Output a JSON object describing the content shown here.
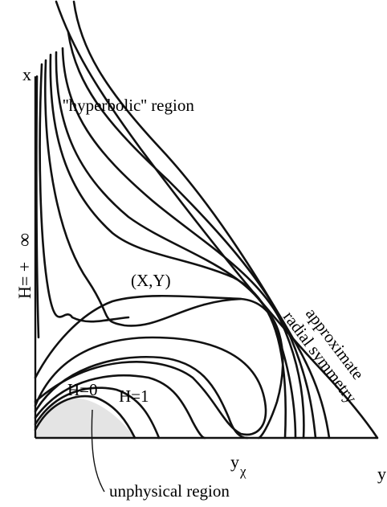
{
  "labels": {
    "x_axis": "x",
    "y_axis": "y",
    "hyperbolic": "''hyperbolic'' region",
    "h_infinity_prefix": "H= +",
    "h_infinity_symbol": "∞",
    "fixed_point": "(X,Y)",
    "approx_line1": "approximate",
    "approx_line2": "radial symmetry",
    "h0": "H=0",
    "h1": "H=1",
    "y_chi_main": "y",
    "y_chi_sub": "χ",
    "unphysical": "unphysical region"
  },
  "colors": {
    "ink": "#111111",
    "shade": "#e4e4e4",
    "background": "#ffffff"
  }
}
